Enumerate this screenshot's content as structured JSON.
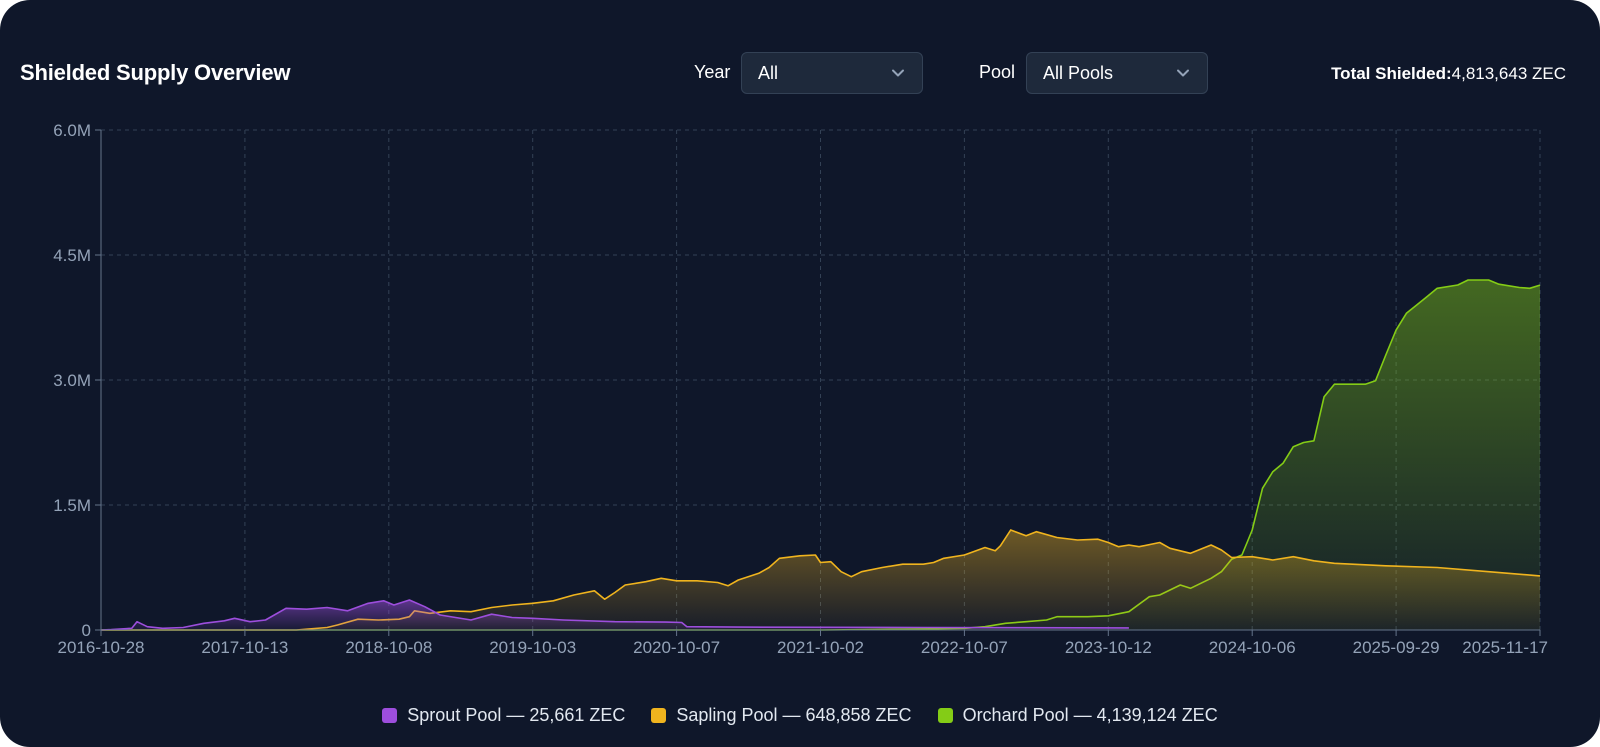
{
  "header": {
    "title": "Shielded Supply Overview",
    "year_label": "Year",
    "year_value": "All",
    "pool_label": "Pool",
    "pool_value": "All Pools",
    "total_label": "Total Shielded:",
    "total_value": "4,813,643 ZEC"
  },
  "legend": [
    {
      "label": "Sprout Pool — 25,661 ZEC",
      "color": "#9d4edd"
    },
    {
      "label": "Sapling Pool — 648,858 ZEC",
      "color": "#f0b41e"
    },
    {
      "label": "Orchard Pool — 4,139,124 ZEC",
      "color": "#84cc16"
    }
  ],
  "chart_data": {
    "type": "area",
    "x_tick_labels": [
      "2016-10-28",
      "2017-10-13",
      "2018-10-08",
      "2019-10-03",
      "2020-10-07",
      "2021-10-02",
      "2022-10-07",
      "2023-10-12",
      "2024-10-06",
      "2025-09-29",
      "2025-11-17"
    ],
    "y_tick_labels": [
      "0",
      "1.5M",
      "3.0M",
      "4.5M",
      "6.0M"
    ],
    "y_tick_values": [
      0,
      1500000,
      3000000,
      4500000,
      6000000
    ],
    "ylim": [
      0,
      6000000
    ],
    "grid": true,
    "legend_position": "bottom-center",
    "series": [
      {
        "name": "Sprout Pool",
        "color": "#9d4edd",
        "points": [
          [
            0,
            0
          ],
          [
            0.01,
            5000
          ],
          [
            0.03,
            20000
          ],
          [
            0.035,
            100000
          ],
          [
            0.045,
            40000
          ],
          [
            0.06,
            20000
          ],
          [
            0.08,
            30000
          ],
          [
            0.1,
            80000
          ],
          [
            0.12,
            110000
          ],
          [
            0.13,
            140000
          ],
          [
            0.145,
            100000
          ],
          [
            0.16,
            120000
          ],
          [
            0.18,
            260000
          ],
          [
            0.2,
            250000
          ],
          [
            0.22,
            270000
          ],
          [
            0.24,
            230000
          ],
          [
            0.26,
            320000
          ],
          [
            0.275,
            350000
          ],
          [
            0.285,
            300000
          ],
          [
            0.3,
            360000
          ],
          [
            0.315,
            280000
          ],
          [
            0.33,
            180000
          ],
          [
            0.36,
            120000
          ],
          [
            0.38,
            190000
          ],
          [
            0.4,
            150000
          ],
          [
            0.42,
            140000
          ],
          [
            0.45,
            120000
          ],
          [
            0.5,
            100000
          ],
          [
            0.55,
            95000
          ],
          [
            0.565,
            90000
          ],
          [
            0.57,
            40000
          ],
          [
            0.62,
            35000
          ],
          [
            0.7,
            33000
          ],
          [
            0.8,
            30000
          ],
          [
            0.9,
            28000
          ],
          [
            1.0,
            25661
          ]
        ]
      },
      {
        "name": "Sapling Pool",
        "color": "#f0b41e",
        "points": [
          [
            0,
            0
          ],
          [
            0.19,
            0
          ],
          [
            0.2,
            10000
          ],
          [
            0.22,
            30000
          ],
          [
            0.23,
            60000
          ],
          [
            0.25,
            130000
          ],
          [
            0.27,
            120000
          ],
          [
            0.29,
            130000
          ],
          [
            0.3,
            160000
          ],
          [
            0.305,
            230000
          ],
          [
            0.32,
            200000
          ],
          [
            0.34,
            230000
          ],
          [
            0.36,
            220000
          ],
          [
            0.38,
            270000
          ],
          [
            0.4,
            300000
          ],
          [
            0.42,
            320000
          ],
          [
            0.44,
            350000
          ],
          [
            0.46,
            420000
          ],
          [
            0.48,
            470000
          ],
          [
            0.49,
            370000
          ],
          [
            0.5,
            450000
          ],
          [
            0.51,
            540000
          ],
          [
            0.53,
            580000
          ],
          [
            0.545,
            620000
          ],
          [
            0.56,
            590000
          ],
          [
            0.58,
            590000
          ],
          [
            0.6,
            570000
          ],
          [
            0.61,
            530000
          ],
          [
            0.62,
            600000
          ],
          [
            0.64,
            680000
          ],
          [
            0.65,
            750000
          ],
          [
            0.66,
            860000
          ],
          [
            0.68,
            890000
          ],
          [
            0.695,
            900000
          ],
          [
            0.7,
            810000
          ],
          [
            0.71,
            820000
          ],
          [
            0.72,
            700000
          ],
          [
            0.73,
            640000
          ],
          [
            0.74,
            700000
          ],
          [
            0.76,
            750000
          ],
          [
            0.78,
            790000
          ],
          [
            0.8,
            790000
          ],
          [
            0.81,
            810000
          ],
          [
            0.82,
            860000
          ],
          [
            0.84,
            900000
          ],
          [
            0.86,
            990000
          ],
          [
            0.87,
            950000
          ],
          [
            0.875,
            1010000
          ],
          [
            0.885,
            1200000
          ],
          [
            0.9,
            1130000
          ],
          [
            0.91,
            1180000
          ],
          [
            0.93,
            1110000
          ],
          [
            0.95,
            1080000
          ],
          [
            0.97,
            1090000
          ],
          [
            0.98,
            1050000
          ],
          [
            0.99,
            1000000
          ],
          [
            1.0,
            1020000
          ],
          [
            1.01,
            1000000
          ],
          [
            1.03,
            1050000
          ],
          [
            1.04,
            980000
          ],
          [
            1.06,
            920000
          ],
          [
            1.08,
            1020000
          ],
          [
            1.09,
            960000
          ],
          [
            1.1,
            870000
          ],
          [
            1.12,
            880000
          ],
          [
            1.14,
            840000
          ],
          [
            1.16,
            880000
          ],
          [
            1.18,
            830000
          ],
          [
            1.2,
            800000
          ],
          [
            1.25,
            770000
          ],
          [
            1.3,
            750000
          ],
          [
            1.35,
            700000
          ],
          [
            1.4,
            648858
          ]
        ]
      },
      {
        "name": "Orchard Pool",
        "color": "#84cc16",
        "points": [
          [
            0,
            0
          ],
          [
            0.7,
            0
          ],
          [
            0.78,
            10000
          ],
          [
            0.84,
            20000
          ],
          [
            0.86,
            40000
          ],
          [
            0.88,
            80000
          ],
          [
            0.9,
            100000
          ],
          [
            0.92,
            120000
          ],
          [
            0.93,
            160000
          ],
          [
            0.96,
            160000
          ],
          [
            0.98,
            170000
          ],
          [
            1.0,
            220000
          ],
          [
            1.02,
            400000
          ],
          [
            1.03,
            420000
          ],
          [
            1.05,
            540000
          ],
          [
            1.06,
            500000
          ],
          [
            1.08,
            620000
          ],
          [
            1.09,
            700000
          ],
          [
            1.1,
            850000
          ],
          [
            1.11,
            900000
          ],
          [
            1.115,
            1050000
          ],
          [
            1.12,
            1200000
          ],
          [
            1.13,
            1700000
          ],
          [
            1.14,
            1900000
          ],
          [
            1.15,
            2000000
          ],
          [
            1.16,
            2200000
          ],
          [
            1.17,
            2250000
          ],
          [
            1.18,
            2270000
          ],
          [
            1.19,
            2800000
          ],
          [
            1.2,
            2950000
          ],
          [
            1.23,
            2950000
          ],
          [
            1.24,
            2990000
          ],
          [
            1.25,
            3300000
          ],
          [
            1.26,
            3600000
          ],
          [
            1.27,
            3800000
          ],
          [
            1.28,
            3900000
          ],
          [
            1.29,
            4000000
          ],
          [
            1.3,
            4100000
          ],
          [
            1.32,
            4140000
          ],
          [
            1.33,
            4200000
          ],
          [
            1.35,
            4200000
          ],
          [
            1.36,
            4150000
          ],
          [
            1.38,
            4110000
          ],
          [
            1.39,
            4100000
          ],
          [
            1.4,
            4139124
          ]
        ]
      }
    ]
  }
}
